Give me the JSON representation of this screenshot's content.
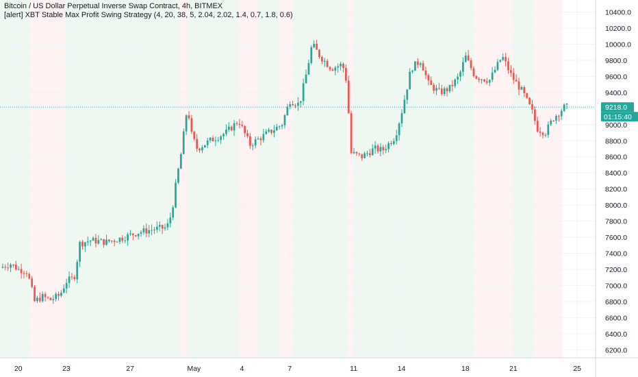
{
  "header": {
    "title": "Bitcoin / US Dollar Perpetual Inverse Swap Contract, 4h, BITMEX",
    "subtitle": "[alert] XBT Stable Max Profit Swing Strategy (4, 20, 38, 5, 2.04, 2.02, 1.4, 0.7, 1.8, 0.6)"
  },
  "price_badge": {
    "price": "9218.0",
    "countdown": "01:15:40"
  },
  "colors": {
    "up": "#26a69a",
    "down": "#ef5350",
    "band_long": "#e8f5e9",
    "band_short": "#fdecec",
    "grid": "#f0f3fa",
    "axis_text": "#131722",
    "badge": "#26a69a"
  },
  "chart_data": {
    "type": "candlestick",
    "title": "Bitcoin / US Dollar Perpetual Inverse Swap Contract, 4h, BITMEX",
    "ylim": [
      6100,
      10550
    ],
    "y_ticks": [
      "6200.0",
      "6400.0",
      "6600.0",
      "6800.0",
      "7000.0",
      "7200.0",
      "7400.0",
      "7600.0",
      "7800.0",
      "8000.0",
      "8200.0",
      "8400.0",
      "8600.0",
      "8800.0",
      "9000.0",
      "9200.0",
      "9400.0",
      "9600.0",
      "9800.0",
      "10000.0",
      "10200.0",
      "10400.0"
    ],
    "x_ticks": [
      {
        "label": "20",
        "day": 0
      },
      {
        "label": "23",
        "day": 3
      },
      {
        "label": "27",
        "day": 7
      },
      {
        "label": "May",
        "day": 11
      },
      {
        "label": "4",
        "day": 14
      },
      {
        "label": "7",
        "day": 17
      },
      {
        "label": "11",
        "day": 21
      },
      {
        "label": "14",
        "day": 24
      },
      {
        "label": "18",
        "day": 28
      },
      {
        "label": "21",
        "day": 31
      },
      {
        "label": "25",
        "day": 35
      }
    ],
    "x_range_days": [
      -1.15,
      36.15
    ],
    "last_price": 9218.0,
    "regime_bands": [
      {
        "from": -1.15,
        "to": 0.75,
        "signal": "long"
      },
      {
        "from": 0.75,
        "to": 2.9,
        "signal": "short"
      },
      {
        "from": 2.9,
        "to": 10.1,
        "signal": "long"
      },
      {
        "from": 10.1,
        "to": 10.55,
        "signal": "short"
      },
      {
        "from": 10.55,
        "to": 13.8,
        "signal": "long"
      },
      {
        "from": 13.8,
        "to": 15.0,
        "signal": "short"
      },
      {
        "from": 15.0,
        "to": 16.3,
        "signal": "long"
      },
      {
        "from": 16.3,
        "to": 17.2,
        "signal": "short"
      },
      {
        "from": 17.2,
        "to": 20.6,
        "signal": "long"
      },
      {
        "from": 20.6,
        "to": 21.0,
        "signal": "short"
      },
      {
        "from": 21.0,
        "to": 23.25,
        "signal": "long"
      },
      {
        "from": 23.25,
        "to": 28.55,
        "signal": "long"
      },
      {
        "from": 28.55,
        "to": 31.0,
        "signal": "short"
      },
      {
        "from": 31.0,
        "to": 32.25,
        "signal": "long"
      },
      {
        "from": 32.25,
        "to": 34.05,
        "signal": "short"
      }
    ],
    "price_path": [
      {
        "day": -1.15,
        "close": 7220
      },
      {
        "day": -0.5,
        "close": 7270
      },
      {
        "day": 0.0,
        "close": 7200
      },
      {
        "day": 0.5,
        "close": 7180
      },
      {
        "day": 0.75,
        "close": 7030
      },
      {
        "day": 1.0,
        "close": 6800
      },
      {
        "day": 1.5,
        "close": 6860
      },
      {
        "day": 2.0,
        "close": 6820
      },
      {
        "day": 2.6,
        "close": 6880
      },
      {
        "day": 3.0,
        "close": 7050
      },
      {
        "day": 3.5,
        "close": 7100
      },
      {
        "day": 3.85,
        "close": 7520
      },
      {
        "day": 4.5,
        "close": 7560
      },
      {
        "day": 5.5,
        "close": 7540
      },
      {
        "day": 6.5,
        "close": 7590
      },
      {
        "day": 7.5,
        "close": 7660
      },
      {
        "day": 8.5,
        "close": 7700
      },
      {
        "day": 9.3,
        "close": 7720
      },
      {
        "day": 9.6,
        "close": 7900
      },
      {
        "day": 9.9,
        "close": 8300
      },
      {
        "day": 10.2,
        "close": 8650
      },
      {
        "day": 10.4,
        "close": 8950
      },
      {
        "day": 10.6,
        "close": 9250
      },
      {
        "day": 10.8,
        "close": 8900
      },
      {
        "day": 11.2,
        "close": 8700
      },
      {
        "day": 12.0,
        "close": 8800
      },
      {
        "day": 13.0,
        "close": 8900
      },
      {
        "day": 13.8,
        "close": 9050
      },
      {
        "day": 14.5,
        "close": 8750
      },
      {
        "day": 15.5,
        "close": 8880
      },
      {
        "day": 16.5,
        "close": 9000
      },
      {
        "day": 17.0,
        "close": 9300
      },
      {
        "day": 17.6,
        "close": 9250
      },
      {
        "day": 18.0,
        "close": 9600
      },
      {
        "day": 18.4,
        "close": 10000
      },
      {
        "day": 18.9,
        "close": 9850
      },
      {
        "day": 19.6,
        "close": 9700
      },
      {
        "day": 20.3,
        "close": 9750
      },
      {
        "day": 20.6,
        "close": 9500
      },
      {
        "day": 20.8,
        "close": 8650
      },
      {
        "day": 21.5,
        "close": 8600
      },
      {
        "day": 22.3,
        "close": 8700
      },
      {
        "day": 22.8,
        "close": 8680
      },
      {
        "day": 23.6,
        "close": 8850
      },
      {
        "day": 24.0,
        "close": 9150
      },
      {
        "day": 24.6,
        "close": 9700
      },
      {
        "day": 25.2,
        "close": 9800
      },
      {
        "day": 25.7,
        "close": 9500
      },
      {
        "day": 26.4,
        "close": 9400
      },
      {
        "day": 27.0,
        "close": 9450
      },
      {
        "day": 27.6,
        "close": 9600
      },
      {
        "day": 28.0,
        "close": 9850
      },
      {
        "day": 28.6,
        "close": 9600
      },
      {
        "day": 29.5,
        "close": 9550
      },
      {
        "day": 30.3,
        "close": 9850
      },
      {
        "day": 30.9,
        "close": 9600
      },
      {
        "day": 31.6,
        "close": 9400
      },
      {
        "day": 32.2,
        "close": 9150
      },
      {
        "day": 32.5,
        "close": 8950
      },
      {
        "day": 33.0,
        "close": 8900
      },
      {
        "day": 33.5,
        "close": 9080
      },
      {
        "day": 34.2,
        "close": 9220
      },
      {
        "day": 34.5,
        "close": 9218
      }
    ]
  }
}
